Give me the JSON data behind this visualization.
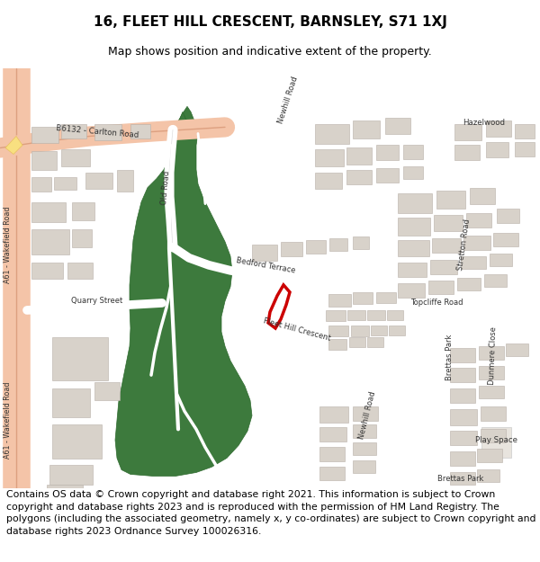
{
  "title": "16, FLEET HILL CRESCENT, BARNSLEY, S71 1XJ",
  "subtitle": "Map shows position and indicative extent of the property.",
  "footer": "Contains OS data © Crown copyright and database right 2021. This information is subject to Crown copyright and database rights 2023 and is reproduced with the permission of HM Land Registry. The polygons (including the associated geometry, namely x, y co-ordinates) are subject to Crown copyright and database rights 2023 Ordnance Survey 100026316.",
  "map_bg": "#f0ece6",
  "green_color": "#3d7a3d",
  "green_edge": "#2e6a2e",
  "road_white": "#ffffff",
  "road_outline": "#cccccc",
  "major_road_fill": "#f4c4a8",
  "major_road_edge": "#dda080",
  "building_fill": "#d8d2ca",
  "building_edge": "#b8b0a8",
  "plot_color": "#cc0000",
  "title_fontsize": 11,
  "subtitle_fontsize": 9,
  "footer_fontsize": 7.8,
  "label_fontsize": 6.2,
  "label_color": "#333333"
}
